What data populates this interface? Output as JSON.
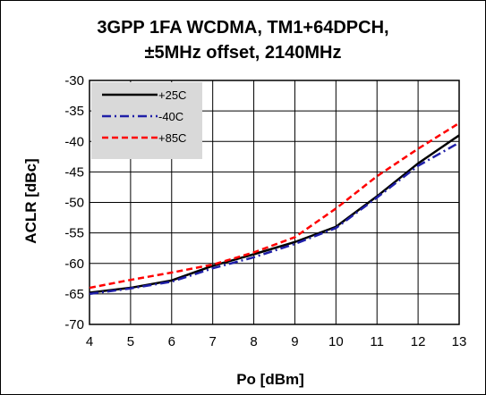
{
  "chart_data": {
    "type": "line",
    "title_lines": [
      "3GPP 1FA  WCDMA,  TM1+64DPCH,",
      "±5MHz offset, 2140MHz"
    ],
    "xlabel": "Po [dBm]",
    "ylabel": "ACLR [dBc]",
    "xlim": [
      4,
      13
    ],
    "ylim": [
      -70,
      -30
    ],
    "x_ticks": [
      "4",
      "5",
      "6",
      "7",
      "8",
      "9",
      "10",
      "11",
      "12",
      "13"
    ],
    "y_ticks": [
      "-30",
      "-35",
      "-40",
      "-45",
      "-50",
      "-55",
      "-60",
      "-65",
      "-70"
    ],
    "grid": true,
    "legend_position": "top-left",
    "x": [
      4,
      5,
      6,
      7,
      8,
      9,
      10,
      11,
      12,
      13
    ],
    "series": [
      {
        "name": "+25C",
        "color": "#000000",
        "dash": "solid",
        "values": [
          -64.8,
          -64.0,
          -62.8,
          -60.4,
          -58.5,
          -56.5,
          -54.0,
          -49.0,
          -43.6,
          -39.0
        ]
      },
      {
        "name": "-40C",
        "color": "#1f1fa8",
        "dash": "dashdot",
        "values": [
          -65.0,
          -64.1,
          -63.0,
          -60.8,
          -59.0,
          -56.8,
          -54.2,
          -49.2,
          -44.0,
          -40.2
        ]
      },
      {
        "name": "+85C",
        "color": "#ff0000",
        "dash": "dash",
        "values": [
          -64.0,
          -62.7,
          -61.5,
          -60.2,
          -58.2,
          -55.7,
          -51.0,
          -45.7,
          -41.2,
          -37.0
        ]
      }
    ]
  }
}
